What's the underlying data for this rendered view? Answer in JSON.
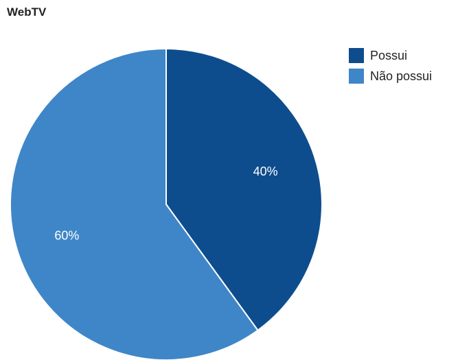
{
  "chart_data": {
    "type": "pie",
    "title": "WebTV",
    "legend_position": "right",
    "slices": [
      {
        "label": "Possui",
        "value": 40,
        "display": "40%",
        "color": "#0e4d8d"
      },
      {
        "label": "Não possui",
        "value": 60,
        "display": "60%",
        "color": "#3f86c8"
      }
    ]
  }
}
